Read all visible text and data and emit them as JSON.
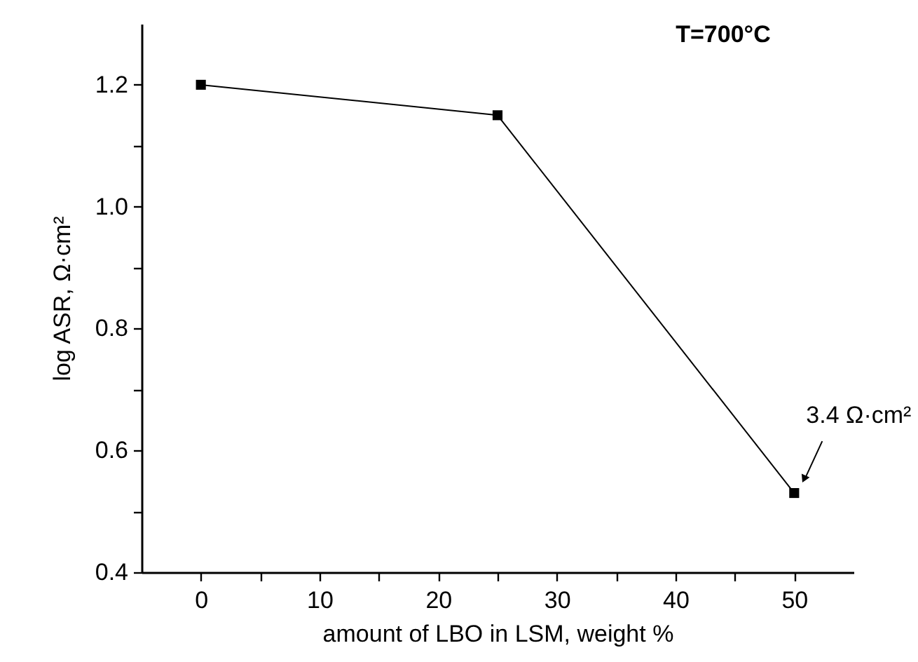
{
  "chart_data": {
    "type": "line",
    "xlabel": "amount of LBO in LSM, weight %",
    "ylabel": "log ASR, Ω·cm²",
    "x": [
      0,
      25,
      50
    ],
    "series": [
      {
        "color": "#000000",
        "values": [
          1.2,
          1.15,
          0.53
        ]
      }
    ],
    "xlim": [
      -5,
      55
    ],
    "xticks": [
      0,
      {
        "value": 5,
        "label": null
      },
      10,
      {
        "value": 15,
        "label": null
      },
      20,
      {
        "value": 25,
        "label": null
      },
      30,
      {
        "value": 35,
        "label": null
      },
      40,
      {
        "value": 45,
        "label": null
      },
      50
    ],
    "ylim": [
      0.4,
      1.3
    ],
    "yticks": [
      0.4,
      {
        "value": 0.5,
        "label": null
      },
      0.6,
      {
        "value": 0.7,
        "label": null
      },
      0.8,
      {
        "value": 0.9,
        "label": null
      },
      {
        "value": 1,
        "label": "1.0"
      },
      {
        "value": 1.1,
        "label": null
      },
      1.2
    ],
    "marker": "square",
    "line_style": "solid",
    "annotations": [
      "T=700°C",
      {
        "text": "3.4 Ω·cm²",
        "x": 50,
        "y": 0.53
      }
    ]
  }
}
